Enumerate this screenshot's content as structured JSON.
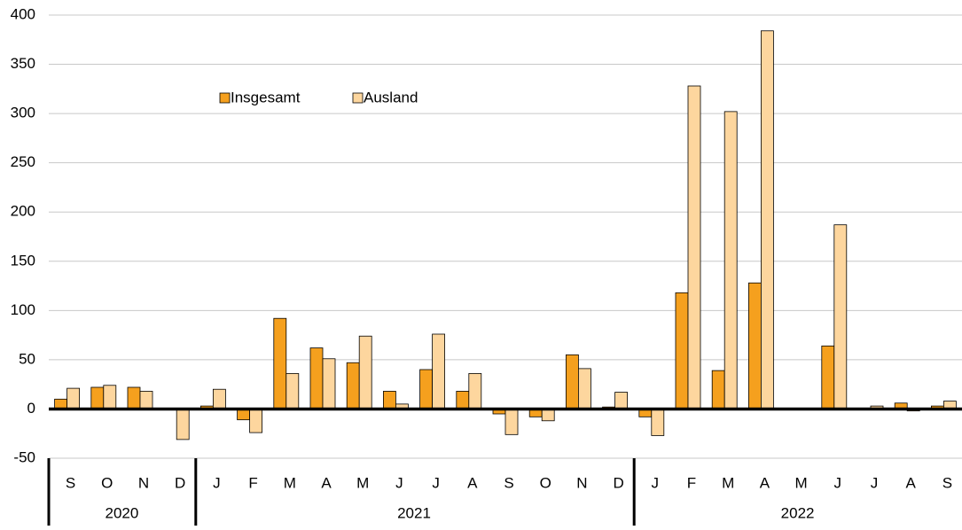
{
  "chart_data": {
    "type": "bar",
    "groups": [
      {
        "label": "2020",
        "categories": [
          "S",
          "O",
          "N",
          "D"
        ]
      },
      {
        "label": "2021",
        "categories": [
          "J",
          "F",
          "M",
          "A",
          "M",
          "J",
          "J",
          "A",
          "S",
          "O",
          "N",
          "D"
        ]
      },
      {
        "label": "2022",
        "categories": [
          "J",
          "F",
          "M",
          "A",
          "M",
          "J",
          "J",
          "A",
          "S"
        ]
      }
    ],
    "series": [
      {
        "name": "Insgesamt",
        "color": "#f5a01e",
        "values": [
          10,
          22,
          22,
          0,
          3,
          -11,
          92,
          62,
          47,
          18,
          40,
          18,
          -5,
          -8,
          55,
          2,
          -8,
          118,
          39,
          128,
          0,
          64,
          0,
          6,
          3
        ]
      },
      {
        "name": "Ausland",
        "color": "#fdd69e",
        "values": [
          21,
          24,
          18,
          -31,
          20,
          -24,
          36,
          51,
          74,
          5,
          76,
          36,
          -26,
          -12,
          41,
          17,
          -27,
          328,
          302,
          384,
          0,
          187,
          3,
          -2,
          8
        ]
      }
    ],
    "ylim": [
      -50,
      400
    ],
    "yticks": [
      -50,
      0,
      50,
      100,
      150,
      200,
      250,
      300,
      350,
      400
    ],
    "grid": true
  }
}
